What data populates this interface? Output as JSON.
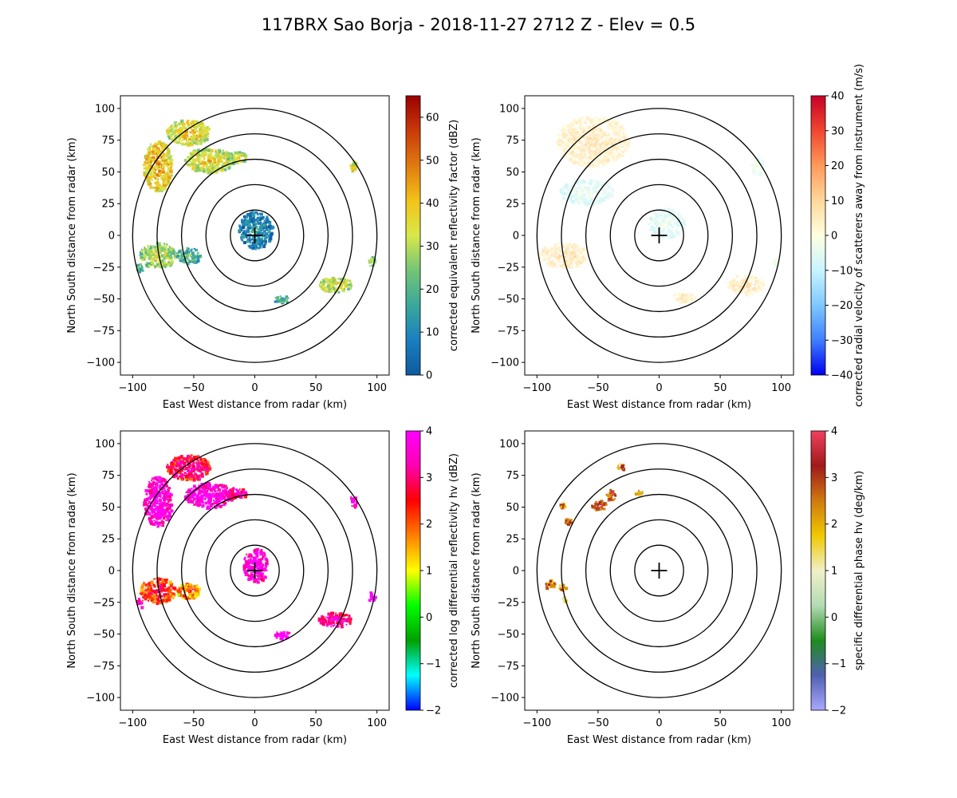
{
  "title": "117BRX Sao Borja - 2018-11-27 2712 Z -  Elev = 0.5",
  "chart_data": [
    {
      "type": "heatmap",
      "panel": "top-left",
      "xlabel": "East West distance from radar (km)",
      "ylabel": "North South distance from radar (km)",
      "xlim": [
        -110,
        110
      ],
      "ylim": [
        -110,
        110
      ],
      "xticks": [
        -100,
        -50,
        0,
        50,
        100
      ],
      "yticks": [
        -100,
        -75,
        -50,
        -25,
        0,
        25,
        50,
        75,
        100
      ],
      "range_rings_km": [
        20,
        40,
        60,
        80,
        100
      ],
      "colorbar": {
        "label": "corrected equivalent reflectivity factor (dBZ)",
        "range": [
          0,
          65
        ],
        "ticks": [
          0,
          10,
          20,
          30,
          40,
          50,
          60
        ],
        "colors": [
          "#0d5a9e",
          "#1a7fc0",
          "#3aa89a",
          "#74c476",
          "#d8e84a",
          "#f2c318",
          "#e07a10",
          "#c83a0a",
          "#9a0000"
        ]
      },
      "echoes": [
        {
          "x": 0,
          "y": 5,
          "rx": 14,
          "ry": 15,
          "dbz": 5
        },
        {
          "x": -80,
          "y": 55,
          "rx": 12,
          "ry": 20,
          "dbz": 35
        },
        {
          "x": -55,
          "y": 82,
          "rx": 18,
          "ry": 10,
          "dbz": 32
        },
        {
          "x": -38,
          "y": 60,
          "rx": 20,
          "ry": 10,
          "dbz": 30
        },
        {
          "x": -15,
          "y": 62,
          "rx": 8,
          "ry": 5,
          "dbz": 28
        },
        {
          "x": -80,
          "y": -15,
          "rx": 15,
          "ry": 10,
          "dbz": 25
        },
        {
          "x": -55,
          "y": -15,
          "rx": 10,
          "ry": 6,
          "dbz": 15
        },
        {
          "x": 65,
          "y": -38,
          "rx": 14,
          "ry": 6,
          "dbz": 28
        },
        {
          "x": 22,
          "y": -50,
          "rx": 7,
          "ry": 3,
          "dbz": 15
        },
        {
          "x": 80,
          "y": 55,
          "rx": 3,
          "ry": 5,
          "dbz": 30
        },
        {
          "x": 95,
          "y": -20,
          "rx": 3,
          "ry": 4,
          "dbz": 20
        },
        {
          "x": -95,
          "y": -25,
          "rx": 3,
          "ry": 4,
          "dbz": 15
        }
      ]
    },
    {
      "type": "heatmap",
      "panel": "top-right",
      "xlabel": "East West distance from radar (km)",
      "ylabel": "North South distance from radar (km)",
      "xlim": [
        -110,
        110
      ],
      "ylim": [
        -110,
        110
      ],
      "xticks": [
        -100,
        -50,
        0,
        50,
        100
      ],
      "yticks": [
        -100,
        -75,
        -50,
        -25,
        0,
        25,
        50,
        75,
        100
      ],
      "range_rings_km": [
        20,
        40,
        60,
        80,
        100
      ],
      "colorbar": {
        "label": "corrected radial velocity of scatterers away from instrument (m/s)",
        "range": [
          -40,
          40
        ],
        "ticks": [
          -40,
          -30,
          -20,
          -10,
          0,
          10,
          20,
          30,
          40
        ],
        "colors": [
          "#0000f0",
          "#3f7fff",
          "#7ec8ff",
          "#c8f4ff",
          "#ffffe0",
          "#ffd79a",
          "#ff9a5a",
          "#f0462f",
          "#c80028"
        ]
      },
      "echoes": [
        {
          "x": -55,
          "y": 75,
          "rx": 30,
          "ry": 20,
          "vel": 3
        },
        {
          "x": -60,
          "y": 35,
          "rx": 22,
          "ry": 10,
          "vel": -8
        },
        {
          "x": 5,
          "y": 10,
          "rx": 15,
          "ry": 12,
          "vel": -8
        },
        {
          "x": -80,
          "y": -15,
          "rx": 20,
          "ry": 10,
          "vel": 4
        },
        {
          "x": 70,
          "y": -38,
          "rx": 15,
          "ry": 8,
          "vel": 4
        },
        {
          "x": 20,
          "y": -48,
          "rx": 10,
          "ry": 4,
          "vel": 3
        },
        {
          "x": 80,
          "y": 55,
          "rx": 5,
          "ry": 8,
          "vel": -6
        },
        {
          "x": 95,
          "y": -20,
          "rx": 3,
          "ry": 5,
          "vel": -5
        }
      ]
    },
    {
      "type": "heatmap",
      "panel": "bottom-left",
      "xlabel": "East West distance from radar (km)",
      "ylabel": "North South distance from radar (km)",
      "xlim": [
        -110,
        110
      ],
      "ylim": [
        -110,
        110
      ],
      "xticks": [
        -100,
        -50,
        0,
        50,
        100
      ],
      "yticks": [
        -100,
        -75,
        -50,
        -25,
        0,
        25,
        50,
        75,
        100
      ],
      "range_rings_km": [
        20,
        40,
        60,
        80,
        100
      ],
      "colorbar": {
        "label": "corrected log differential reflectivity hv (dBZ)",
        "range": [
          -2,
          4
        ],
        "ticks": [
          -2,
          -1,
          0,
          1,
          2,
          3,
          4
        ],
        "colors": [
          "#0000ff",
          "#00ffff",
          "#00a000",
          "#00ff00",
          "#ffff00",
          "#ff8000",
          "#ff0000",
          "#ff00b0",
          "#ff00ff"
        ]
      },
      "echoes": [
        {
          "x": 0,
          "y": 5,
          "rx": 10,
          "ry": 14,
          "zdr": 3.5
        },
        {
          "x": -80,
          "y": 55,
          "rx": 12,
          "ry": 20,
          "zdr": 3.5
        },
        {
          "x": -55,
          "y": 82,
          "rx": 18,
          "ry": 10,
          "zdr": 2.5
        },
        {
          "x": -38,
          "y": 60,
          "rx": 20,
          "ry": 10,
          "zdr": 3.5
        },
        {
          "x": -15,
          "y": 62,
          "rx": 8,
          "ry": 5,
          "zdr": 3
        },
        {
          "x": -80,
          "y": -15,
          "rx": 15,
          "ry": 10,
          "zdr": 2
        },
        {
          "x": -55,
          "y": -15,
          "rx": 10,
          "ry": 6,
          "zdr": 1.5
        },
        {
          "x": 65,
          "y": -38,
          "rx": 14,
          "ry": 6,
          "zdr": 3
        },
        {
          "x": 22,
          "y": -50,
          "rx": 7,
          "ry": 3,
          "zdr": 4
        },
        {
          "x": 80,
          "y": 55,
          "rx": 3,
          "ry": 5,
          "zdr": 3.5
        },
        {
          "x": 95,
          "y": -20,
          "rx": 3,
          "ry": 4,
          "zdr": 4
        },
        {
          "x": -95,
          "y": -25,
          "rx": 3,
          "ry": 4,
          "zdr": 3
        }
      ]
    },
    {
      "type": "heatmap",
      "panel": "bottom-right",
      "xlabel": "East West distance from radar (km)",
      "ylabel": "North South distance from radar (km)",
      "xlim": [
        -110,
        110
      ],
      "ylim": [
        -110,
        110
      ],
      "xticks": [
        -100,
        -50,
        0,
        50,
        100
      ],
      "yticks": [
        -100,
        -75,
        -50,
        -25,
        0,
        25,
        50,
        75,
        100
      ],
      "range_rings_km": [
        20,
        40,
        60,
        80,
        100
      ],
      "colorbar": {
        "label": "specific differential phase hv (deg/km)",
        "range": [
          -2,
          4
        ],
        "ticks": [
          -2,
          -1,
          0,
          1,
          2,
          3,
          4
        ],
        "colors": [
          "#a8a8ff",
          "#5060b0",
          "#1e8c1e",
          "#b4dcb4",
          "#f0f0c8",
          "#f0c800",
          "#d07a10",
          "#a01a1a",
          "#f04060"
        ]
      },
      "echoes": [
        {
          "x": -50,
          "y": 52,
          "rx": 6,
          "ry": 4,
          "kdp": 2.5
        },
        {
          "x": -40,
          "y": 60,
          "rx": 4,
          "ry": 5,
          "kdp": 2.5
        },
        {
          "x": -75,
          "y": 40,
          "rx": 3,
          "ry": 3,
          "kdp": 2.2
        },
        {
          "x": -80,
          "y": 52,
          "rx": 2,
          "ry": 2,
          "kdp": 2.5
        },
        {
          "x": -32,
          "y": 82,
          "rx": 3,
          "ry": 3,
          "kdp": 2
        },
        {
          "x": -18,
          "y": 62,
          "rx": 3,
          "ry": 2,
          "kdp": 1.5
        },
        {
          "x": -90,
          "y": -10,
          "rx": 4,
          "ry": 4,
          "kdp": 2.2
        },
        {
          "x": -80,
          "y": -13,
          "rx": 3,
          "ry": 3,
          "kdp": 2
        },
        {
          "x": -78,
          "y": -22,
          "rx": 2,
          "ry": 2,
          "kdp": 1
        }
      ]
    }
  ]
}
